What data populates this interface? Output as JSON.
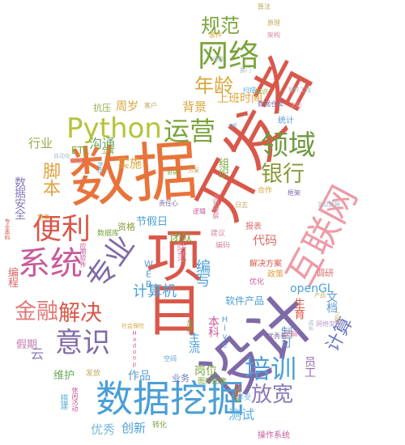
{
  "cloud": {
    "words": [
      {
        "text": "数据",
        "color": "#e8743b",
        "tone": "orange"
      },
      {
        "text": "项目",
        "color": "#d9584a",
        "tone": "red"
      },
      {
        "text": "开发者",
        "color": "#d9584a",
        "tone": "red"
      },
      {
        "text": "设计",
        "color": "#7f6aa8",
        "tone": "purple"
      },
      {
        "text": "数据挖掘",
        "color": "#4b9fd6",
        "tone": "blue"
      },
      {
        "text": "Python",
        "color": "#b6c33a",
        "tone": "olive"
      },
      {
        "text": "网络",
        "color": "#7aa43a",
        "tone": "green"
      },
      {
        "text": "规范",
        "color": "#7aa43a",
        "tone": "green"
      },
      {
        "text": "年龄",
        "color": "#d9a63b",
        "tone": "amber"
      },
      {
        "text": "运营",
        "color": "#7aa43a",
        "tone": "green"
      },
      {
        "text": "领域",
        "color": "#6e9a3c",
        "tone": "green"
      },
      {
        "text": "银行",
        "color": "#8a9a3a",
        "tone": "olive"
      },
      {
        "text": "互联网",
        "color": "#ef9aa6",
        "tone": "pink"
      },
      {
        "text": "系统",
        "color": "#c85a9a",
        "tone": "magenta"
      },
      {
        "text": "便利",
        "color": "#d9584a",
        "tone": "red"
      },
      {
        "text": "金融",
        "color": "#e07a7a",
        "tone": "pink"
      },
      {
        "text": "意识",
        "color": "#7f6aa8",
        "tone": "purple"
      },
      {
        "text": "解决",
        "color": "#d9584a",
        "tone": "red"
      },
      {
        "text": "培训",
        "color": "#4b9fd6",
        "tone": "blue"
      },
      {
        "text": "放宽",
        "color": "#8a7ab8",
        "tone": "purple"
      },
      {
        "text": "计算机",
        "color": "#4b9fd6",
        "tone": "blue"
      },
      {
        "text": "编写",
        "color": "#4b9fd6",
        "tone": "blue"
      },
      {
        "text": "专业",
        "color": "#7f6aa8",
        "tone": "purple"
      },
      {
        "text": "脚本",
        "color": "#e0a23b",
        "tone": "amber"
      },
      {
        "text": "沟通",
        "color": "#6aa85a",
        "tone": "green"
      },
      {
        "text": "实施",
        "color": "#d9a63b",
        "tone": "amber"
      },
      {
        "text": "上班时间",
        "color": "#e0a23b",
        "tone": "amber"
      },
      {
        "text": "团队",
        "color": "#7aa43a",
        "tone": "green"
      },
      {
        "text": "代码",
        "color": "#d96a6a",
        "tone": "red"
      },
      {
        "text": "数据安全",
        "color": "#8a7ab8",
        "tone": "purple"
      },
      {
        "text": "行业",
        "color": "#8fae4a",
        "tone": "green"
      },
      {
        "text": "节假日",
        "color": "#4b9fd6",
        "tone": "blue"
      },
      {
        "text": "维护",
        "color": "#6aa85a",
        "tone": "green"
      },
      {
        "text": "作品",
        "color": "#5a9ad0",
        "tone": "blue"
      },
      {
        "text": "云",
        "color": "#8a7ab8",
        "tone": "purple"
      },
      {
        "text": "假期",
        "color": "#c97ab0",
        "tone": "pink"
      },
      {
        "text": "ETL",
        "color": "#7aa43a",
        "tone": "green"
      },
      {
        "text": "周岁",
        "color": "#d9a63b",
        "tone": "amber"
      },
      {
        "text": "背景",
        "color": "#d9a63b",
        "tone": "amber"
      },
      {
        "text": "抗压",
        "color": "#8fae4a",
        "tone": "green"
      },
      {
        "text": "客户",
        "color": "#c0a860",
        "tone": "amber"
      },
      {
        "text": "员工",
        "color": "#9a6ab0",
        "tone": "purple"
      },
      {
        "text": "计算",
        "color": "#6a7ac0",
        "tone": "indigo"
      },
      {
        "text": "文档",
        "color": "#5a9ad0",
        "tone": "blue"
      },
      {
        "text": "openGL",
        "color": "#4b9fd6",
        "tone": "blue"
      },
      {
        "text": "软件产品",
        "color": "#4b9fd6",
        "tone": "blue"
      },
      {
        "text": "制订",
        "color": "#5a9ad0",
        "tone": "blue"
      },
      {
        "text": "岗位",
        "color": "#7aa43a",
        "tone": "green"
      },
      {
        "text": "测试",
        "color": "#5aaed8",
        "tone": "blue"
      },
      {
        "text": "创新",
        "color": "#4b9fd6",
        "tone": "blue"
      },
      {
        "text": "优秀",
        "color": "#7ab8e0",
        "tone": "blue"
      },
      {
        "text": "发放",
        "color": "#c0a860",
        "tone": "amber"
      },
      {
        "text": "业务",
        "color": "#6a7ac0",
        "tone": "indigo"
      },
      {
        "text": "主流",
        "color": "#4b9fd6",
        "tone": "blue"
      },
      {
        "text": "本科",
        "color": "#c85a9a",
        "tone": "magenta"
      },
      {
        "text": "资格",
        "color": "#8a9a3a",
        "tone": "olive"
      },
      {
        "text": "WEB",
        "color": "#5a9ad0",
        "tone": "blue"
      },
      {
        "text": "防范",
        "color": "#d98aa8",
        "tone": "pink"
      },
      {
        "text": "组织",
        "color": "#7aa43a",
        "tone": "green"
      },
      {
        "text": "合作",
        "color": "#d9a63b",
        "tone": "amber"
      },
      {
        "text": "调研",
        "color": "#d96a6a",
        "tone": "red"
      },
      {
        "text": "解决方案",
        "color": "#d9584a",
        "tone": "red"
      },
      {
        "text": "生育",
        "color": "#d9584a",
        "tone": "red"
      },
      {
        "text": "建议",
        "color": "#d98aa8",
        "tone": "pink"
      },
      {
        "text": "报表",
        "color": "#d96a6a",
        "tone": "red"
      },
      {
        "text": "政策",
        "color": "#e0a23b",
        "tone": "amber"
      },
      {
        "text": "优化",
        "color": "#c85a9a",
        "tone": "magenta"
      },
      {
        "text": "编码",
        "color": "#d98aa8",
        "tone": "pink"
      },
      {
        "text": "数据库",
        "color": "#7aa43a",
        "tone": "green"
      },
      {
        "text": "应用软件",
        "color": "#c85a9a",
        "tone": "magenta"
      },
      {
        "text": "编程",
        "color": "#d96a6a",
        "tone": "red"
      },
      {
        "text": "竞争",
        "color": "#e0a23b",
        "tone": "amber"
      },
      {
        "text": "专业本科",
        "color": "#d9584a",
        "tone": "red"
      },
      {
        "text": "Hive",
        "color": "#5a9ad0",
        "tone": "blue"
      },
      {
        "text": "Hadoop",
        "color": "#c85a9a",
        "tone": "magenta"
      },
      {
        "text": "社会保险",
        "color": "#d9a63b",
        "tone": "amber"
      },
      {
        "text": "空间",
        "color": "#5a9ad0",
        "tone": "blue"
      },
      {
        "text": "加班",
        "color": "#7aa43a",
        "tone": "green"
      },
      {
        "text": "图形图像",
        "color": "#7aa43a",
        "tone": "green"
      },
      {
        "text": "补贴",
        "color": "#7aa43a",
        "tone": "green"
      },
      {
        "text": "跟踪",
        "color": "#d9584a",
        "tone": "red"
      },
      {
        "text": "享受",
        "color": "#7ab8e0",
        "tone": "blue"
      },
      {
        "text": "搭建",
        "color": "#5aaed8",
        "tone": "blue"
      },
      {
        "text": "休闲活动",
        "color": "#c85a9a",
        "tone": "magenta"
      },
      {
        "text": "转化",
        "color": "#7aa43a",
        "tone": "green"
      },
      {
        "text": "操作系统",
        "color": "#c85a9a",
        "tone": "magenta"
      },
      {
        "text": "优秀者",
        "color": "#7f6aa8",
        "tone": "purple"
      },
      {
        "text": "理解",
        "color": "#d98aa8",
        "tone": "pink"
      },
      {
        "text": "网络安全",
        "color": "#c0a0d0",
        "tone": "lilac"
      },
      {
        "text": "三年",
        "color": "#c0a860",
        "tone": "amber"
      },
      {
        "text": "测试数据",
        "color": "#aab8c8",
        "tone": "grey"
      },
      {
        "text": "框架",
        "color": "#7f6aa8",
        "tone": "purple"
      },
      {
        "text": "逻辑",
        "color": "#c85a9a",
        "tone": "magenta"
      },
      {
        "text": "深刻理解",
        "color": "#d98aa8",
        "tone": "pink"
      },
      {
        "text": "统计",
        "color": "#5a9ad0",
        "tone": "blue"
      },
      {
        "text": "数据仓库",
        "color": "#7f6aa8",
        "tone": "purple"
      },
      {
        "text": "扫描",
        "color": "#5aaed8",
        "tone": "blue"
      },
      {
        "text": "知识",
        "color": "#8fae4a",
        "tone": "green"
      },
      {
        "text": "原理",
        "color": "#c0a860",
        "tone": "amber"
      },
      {
        "text": "算法",
        "color": "#c0a860",
        "tone": "amber"
      },
      {
        "text": "架构",
        "color": "#d98aa8",
        "tone": "pink"
      },
      {
        "text": "条件",
        "color": "#d9a63b",
        "tone": "amber"
      },
      {
        "text": "工具",
        "color": "#7aa43a",
        "tone": "green"
      },
      {
        "text": "智能",
        "color": "#d98aa8",
        "tone": "pink"
      },
      {
        "text": "学历",
        "color": "#5aaed8",
        "tone": "blue"
      },
      {
        "text": "方案",
        "color": "#c0a860",
        "tone": "amber"
      },
      {
        "text": "协调",
        "color": "#7aa43a",
        "tone": "green"
      },
      {
        "text": "责任心",
        "color": "#7f6aa8",
        "tone": "purple"
      },
      {
        "text": "日志",
        "color": "#c0a860",
        "tone": "amber"
      },
      {
        "text": "sql",
        "color": "#5a9ad0",
        "tone": "blue"
      },
      {
        "text": "产品",
        "color": "#c0a860",
        "tone": "amber"
      },
      {
        "text": "主动",
        "color": "#d98aa8",
        "tone": "pink"
      },
      {
        "text": "软件工程",
        "color": "#aab8c8",
        "tone": "grey"
      },
      {
        "text": "成长",
        "color": "#aab8c8",
        "tone": "grey"
      },
      {
        "text": "部门",
        "color": "#aab8c8",
        "tone": "grey"
      },
      {
        "text": "运维",
        "color": "#aab8c8",
        "tone": "grey"
      },
      {
        "text": "自动化",
        "color": "#aab8c8",
        "tone": "grey"
      }
    ]
  }
}
